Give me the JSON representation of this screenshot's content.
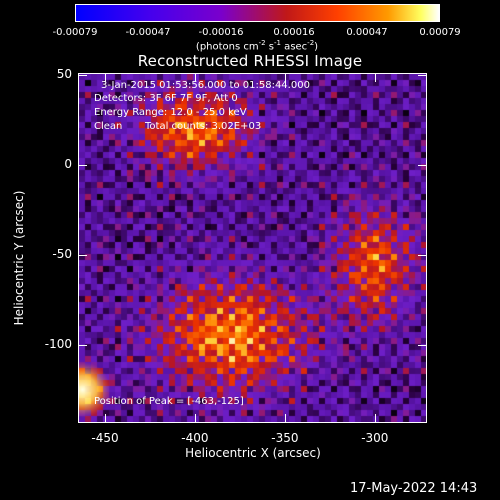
{
  "colorbar": {
    "ticks": [
      "-0.00079",
      "-0.00047",
      "-0.00016",
      "0.00016",
      "0.00047",
      "0.00079"
    ],
    "unit_main": "(photons cm",
    "unit_sup1": "-2",
    "unit_mid": " s",
    "unit_sup2": "-1",
    "unit_mid2": " asec",
    "unit_sup3": "-2",
    "unit_end": ")"
  },
  "chart_data": {
    "type": "heatmap",
    "title": "Reconstructed RHESSI Image",
    "xlabel": "Heliocentric X (arcsec)",
    "ylabel": "Heliocentric Y (arcsec)",
    "xlim": [
      -465,
      -271
    ],
    "ylim": [
      -143,
      51
    ],
    "xticks": [
      -450,
      -400,
      -350,
      -300
    ],
    "yticks": [
      50,
      0,
      -50,
      -100
    ],
    "zlim": [
      -0.00079,
      0.00079
    ],
    "peak": [
      -463,
      -125
    ],
    "hot_regions": [
      {
        "x": -400,
        "y": 20,
        "sx": 30,
        "sy": 22,
        "amp": 0.85
      },
      {
        "x": -380,
        "y": -95,
        "sx": 40,
        "sy": 30,
        "amp": 0.9
      },
      {
        "x": -300,
        "y": -55,
        "sx": 22,
        "sy": 30,
        "amp": 0.75
      },
      {
        "x": -463,
        "y": -125,
        "sx": 12,
        "sy": 12,
        "amp": 1.0
      }
    ]
  },
  "annotations": {
    "time_range": "3-Jan-2015 01:53:56.000 to 01:58:44.000",
    "detectors": "Detectors: 3F 6F 7F 9F, Att 0",
    "energy": "Energy Range: 12.0 - 25.0 keV",
    "clean": "Clean",
    "counts": "Total counts: 3.02E+03",
    "peak_text": "Position of Peak = [-463,-125]"
  },
  "footer": {
    "timestamp": "17-May-2022 14:43"
  }
}
